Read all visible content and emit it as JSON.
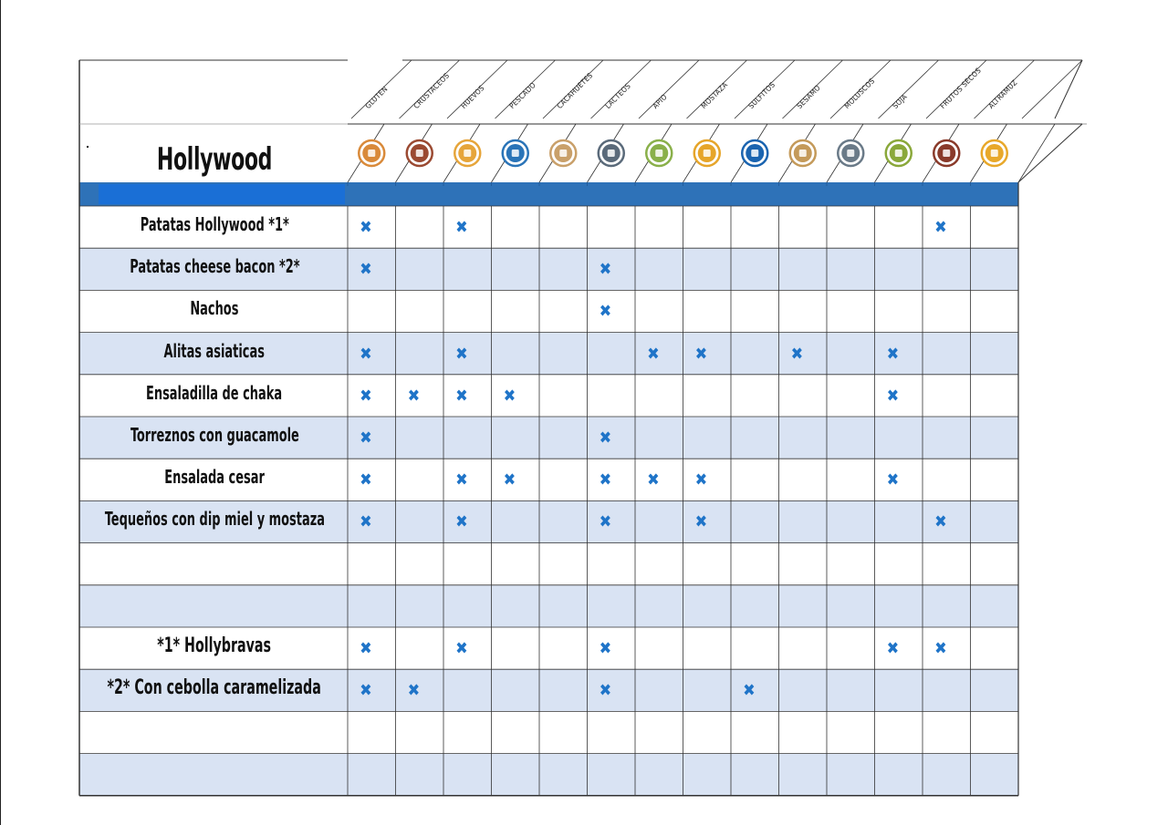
{
  "title": "Hollywood",
  "allergens": [
    {
      "name": "GLUTEN",
      "color": "#d98a3a",
      "icon": "wheat-icon"
    },
    {
      "name": "CRUSTACEOS",
      "color": "#9b4a32",
      "icon": "shrimp-icon"
    },
    {
      "name": "HUEVOS",
      "color": "#e6a53a",
      "icon": "egg-icon"
    },
    {
      "name": "PESCADO",
      "color": "#2a74b8",
      "icon": "fish-icon"
    },
    {
      "name": "CACAHUETES",
      "color": "#c9a06a",
      "icon": "peanut-icon"
    },
    {
      "name": "LACTEOS",
      "color": "#5a6a7a",
      "icon": "milk-icon"
    },
    {
      "name": "APIO",
      "color": "#8ab04a",
      "icon": "celery-icon"
    },
    {
      "name": "MOSTAZA",
      "color": "#e6a52a",
      "icon": "mustard-icon"
    },
    {
      "name": "SULFITOS",
      "color": "#1a64b0",
      "icon": "sulfite-icon"
    },
    {
      "name": "SESAMO",
      "color": "#c49a5a",
      "icon": "sesame-icon"
    },
    {
      "name": "MOLUSCOS",
      "color": "#6a7a88",
      "icon": "mollusc-icon"
    },
    {
      "name": "SOJA",
      "color": "#8aa83a",
      "icon": "soy-icon"
    },
    {
      "name": "FRUTOS SECOS",
      "color": "#8a3a2a",
      "icon": "nuts-icon"
    },
    {
      "name": "ALTRAMUZ",
      "color": "#e8a82a",
      "icon": "lupin-icon"
    }
  ],
  "rows": [
    {
      "label": "Patatas Hollywood  *1*",
      "marks": [
        0,
        2,
        12
      ]
    },
    {
      "label": "Patatas cheese bacon  *2*",
      "marks": [
        0,
        5
      ]
    },
    {
      "label": "Nachos",
      "marks": [
        5
      ]
    },
    {
      "label": "Alitas asiaticas",
      "marks": [
        0,
        2,
        6,
        7,
        9,
        11
      ]
    },
    {
      "label": "Ensaladilla de chaka",
      "marks": [
        0,
        1,
        2,
        3,
        11
      ]
    },
    {
      "label": "Torreznos con guacamole",
      "marks": [
        0,
        5
      ]
    },
    {
      "label": "Ensalada cesar",
      "marks": [
        0,
        2,
        3,
        5,
        6,
        7,
        11
      ]
    },
    {
      "label": "Tequeños con dip miel y mostaza",
      "marks": [
        0,
        2,
        5,
        7,
        12
      ]
    },
    {
      "label": "",
      "marks": []
    },
    {
      "label": "",
      "marks": []
    },
    {
      "label": "*1* Hollybravas",
      "marks": [
        0,
        2,
        5,
        11,
        12
      ]
    },
    {
      "label": "*2* Con cebolla caramelizada",
      "marks": [
        0,
        1,
        5,
        8
      ]
    },
    {
      "label": "",
      "marks": []
    },
    {
      "label": "",
      "marks": []
    }
  ],
  "mark_symbol": "✖",
  "colors": {
    "header_band": "#2e72b8",
    "header_band_light": "#1a6fd6",
    "row_alt": "#d9e3f3",
    "grid": "#333333",
    "mark": "#1f74c8"
  }
}
